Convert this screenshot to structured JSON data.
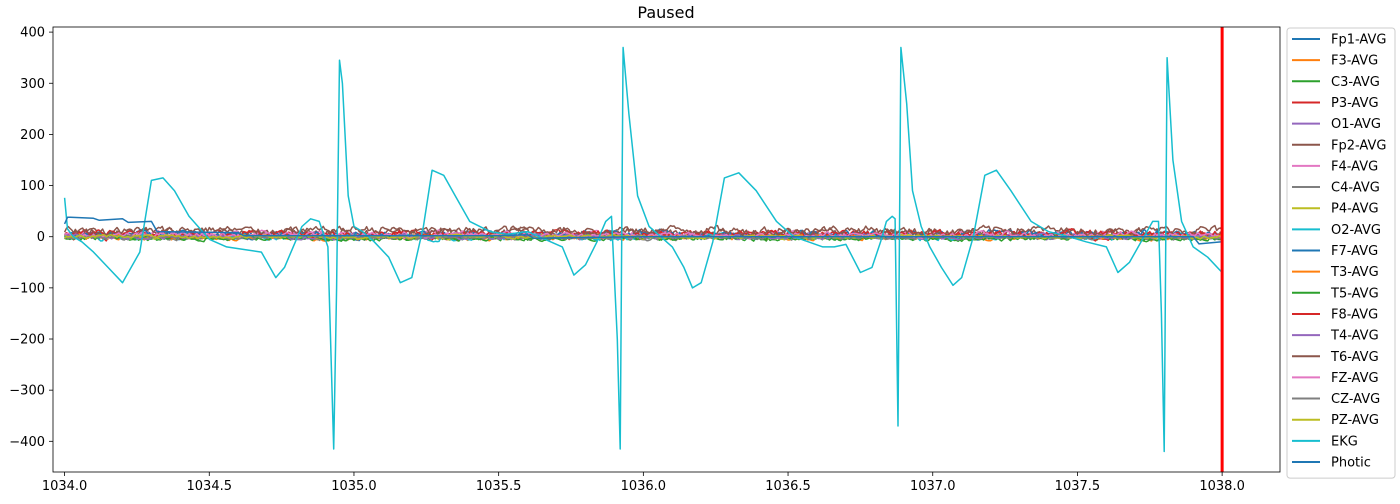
{
  "chart_data": {
    "type": "line",
    "title": "Paused",
    "xlabel": "",
    "ylabel": "",
    "xlim": [
      1033.96,
      1038.2
    ],
    "ylim": [
      -460,
      410
    ],
    "xticks": [
      1034.0,
      1034.5,
      1035.0,
      1035.5,
      1036.0,
      1036.5,
      1037.0,
      1037.5,
      1038.0
    ],
    "xtick_labels": [
      "1034.0",
      "1034.5",
      "1035.0",
      "1035.5",
      "1036.0",
      "1036.5",
      "1037.0",
      "1037.5",
      "1038.0"
    ],
    "yticks": [
      400,
      300,
      200,
      100,
      0,
      -100,
      -200,
      -300,
      -400
    ],
    "ytick_labels": [
      "400",
      "300",
      "200",
      "100",
      "0",
      "−100",
      "−200",
      "−300",
      "−400"
    ],
    "grid": false,
    "legend_position": "outside-right",
    "cursor_x": 1038.0,
    "cursor_color": "#ff0000",
    "series": [
      {
        "name": "Fp1-AVG",
        "color": "#1f77b4",
        "amp": 6,
        "offset": 2
      },
      {
        "name": "F3-AVG",
        "color": "#ff7f0e",
        "amp": 5,
        "offset": 0
      },
      {
        "name": "C3-AVG",
        "color": "#2ca02c",
        "amp": 5,
        "offset": -2
      },
      {
        "name": "P3-AVG",
        "color": "#d62728",
        "amp": 7,
        "offset": 2
      },
      {
        "name": "O1-AVG",
        "color": "#9467bd",
        "amp": 5,
        "offset": 1
      },
      {
        "name": "Fp2-AVG",
        "color": "#8c564b",
        "amp": 8,
        "offset": 8
      },
      {
        "name": "F4-AVG",
        "color": "#e377c2",
        "amp": 6,
        "offset": 4
      },
      {
        "name": "C4-AVG",
        "color": "#7f7f7f",
        "amp": 4,
        "offset": -2
      },
      {
        "name": "P4-AVG",
        "color": "#bcbd22",
        "amp": 4,
        "offset": 0
      },
      {
        "name": "O2-AVG",
        "color": "#17becf",
        "amp": 6,
        "offset": 0
      },
      {
        "name": "F7-AVG",
        "color": "#1f77b4",
        "amp": 7,
        "offset": 5
      },
      {
        "name": "T3-AVG",
        "color": "#ff7f0e",
        "amp": 4,
        "offset": -1
      },
      {
        "name": "T5-AVG",
        "color": "#2ca02c",
        "amp": 4,
        "offset": -3
      },
      {
        "name": "F8-AVG",
        "color": "#d62728",
        "amp": 6,
        "offset": 6
      },
      {
        "name": "T4-AVG",
        "color": "#9467bd",
        "amp": 4,
        "offset": 0
      },
      {
        "name": "T6-AVG",
        "color": "#8c564b",
        "amp": 8,
        "offset": 12
      },
      {
        "name": "FZ-AVG",
        "color": "#e377c2",
        "amp": 5,
        "offset": 3
      },
      {
        "name": "CZ-AVG",
        "color": "#7f7f7f",
        "amp": 3,
        "offset": -1
      },
      {
        "name": "PZ-AVG",
        "color": "#bcbd22",
        "amp": 3,
        "offset": 0
      },
      {
        "name": "EKG",
        "color": "#17becf",
        "x": [
          1034.0,
          1034.01,
          1034.03,
          1034.06,
          1034.1,
          1034.15,
          1034.2,
          1034.26,
          1034.3,
          1034.34,
          1034.38,
          1034.43,
          1034.5,
          1034.56,
          1034.62,
          1034.68,
          1034.73,
          1034.76,
          1034.79,
          1034.82,
          1034.85,
          1034.88,
          1034.91,
          1034.93,
          1034.94,
          1034.95,
          1034.96,
          1034.98,
          1035.0,
          1035.03,
          1035.07,
          1035.12,
          1035.16,
          1035.2,
          1035.24,
          1035.27,
          1035.31,
          1035.35,
          1035.4,
          1035.47,
          1035.53,
          1035.6,
          1035.66,
          1035.72,
          1035.76,
          1035.8,
          1035.84,
          1035.87,
          1035.89,
          1035.91,
          1035.92,
          1035.93,
          1035.95,
          1035.98,
          1036.02,
          1036.06,
          1036.1,
          1036.14,
          1036.17,
          1036.2,
          1036.24,
          1036.28,
          1036.33,
          1036.39,
          1036.46,
          1036.52,
          1036.57,
          1036.62,
          1036.66,
          1036.7,
          1036.75,
          1036.79,
          1036.82,
          1036.84,
          1036.86,
          1036.87,
          1036.88,
          1036.89,
          1036.91,
          1036.93,
          1036.96,
          1036.99,
          1037.03,
          1037.07,
          1037.1,
          1037.14,
          1037.18,
          1037.22,
          1037.27,
          1037.34,
          1037.4,
          1037.47,
          1037.53,
          1037.6,
          1037.64,
          1037.68,
          1037.72,
          1037.76,
          1037.78,
          1037.79,
          1037.8,
          1037.81,
          1037.83,
          1037.86,
          1037.9,
          1037.95,
          1038.0
        ],
        "y": [
          76,
          15,
          0,
          -10,
          -30,
          -60,
          -90,
          -30,
          110,
          115,
          90,
          40,
          -5,
          -20,
          -25,
          -30,
          -80,
          -60,
          -20,
          20,
          35,
          30,
          -20,
          -415,
          -100,
          345,
          300,
          80,
          20,
          10,
          -10,
          -40,
          -90,
          -80,
          20,
          130,
          120,
          80,
          30,
          10,
          5,
          10,
          -5,
          -20,
          -75,
          -55,
          -10,
          30,
          40,
          -200,
          -415,
          370,
          240,
          80,
          20,
          0,
          -20,
          -60,
          -100,
          -90,
          -10,
          115,
          125,
          90,
          30,
          0,
          -10,
          -20,
          -20,
          -15,
          -70,
          -60,
          -10,
          30,
          40,
          35,
          -370,
          370,
          260,
          90,
          20,
          -20,
          -60,
          -95,
          -80,
          0,
          120,
          130,
          90,
          30,
          10,
          0,
          -10,
          -20,
          -70,
          -50,
          -10,
          30,
          30,
          -150,
          -420,
          350,
          150,
          30,
          -20,
          -40,
          -70
        ]
      },
      {
        "name": "Photic",
        "color": "#1f77b4",
        "x": [
          1034.0,
          1034.01,
          1034.02,
          1034.1,
          1034.12,
          1034.2,
          1034.22,
          1034.3,
          1034.32,
          1034.6,
          1034.62,
          1035.0,
          1035.5,
          1035.6,
          1035.62,
          1036.0,
          1036.5,
          1037.0,
          1037.5,
          1037.9,
          1037.92,
          1038.0
        ],
        "y": [
          25,
          38,
          38,
          36,
          32,
          35,
          28,
          30,
          10,
          8,
          2,
          2,
          2,
          4,
          -3,
          0,
          0,
          0,
          0,
          0,
          -14,
          -10
        ]
      }
    ]
  }
}
